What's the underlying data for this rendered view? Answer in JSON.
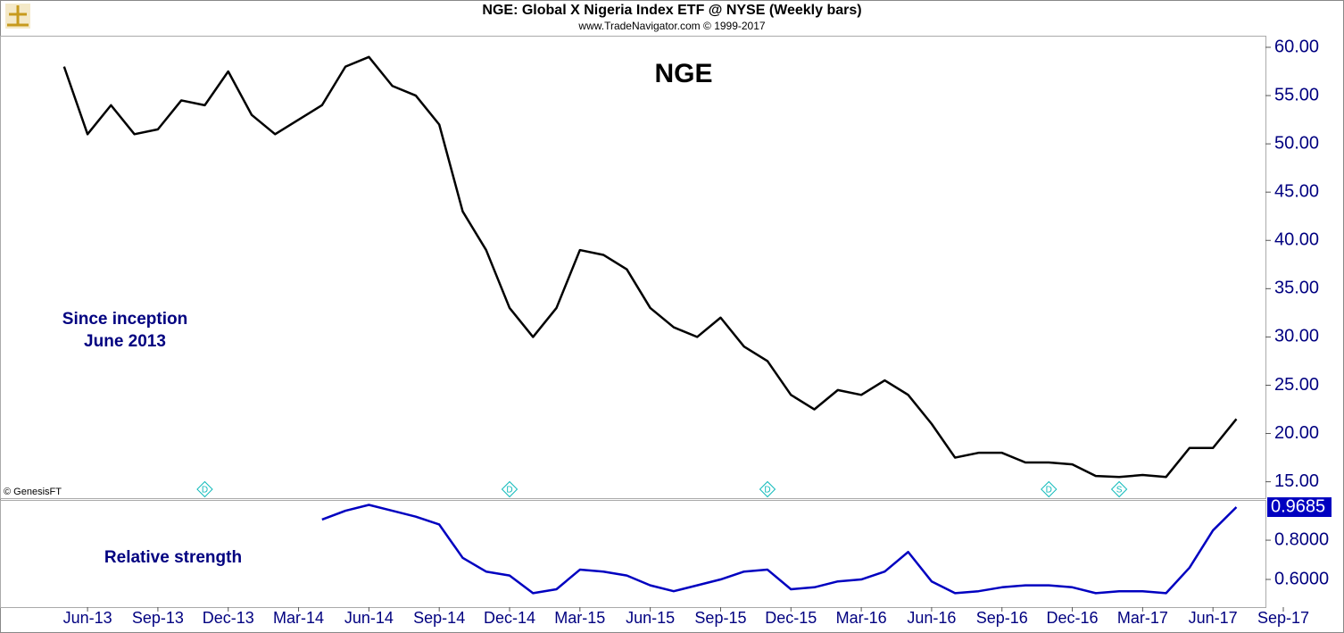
{
  "header": {
    "title": "NGE:  Global X Nigeria Index ETF @ NYSE  (Weekly bars)",
    "subtitle": "www.TradeNavigator.com © 1999-2017",
    "credit": "© GenesisFT"
  },
  "chart_data": [
    {
      "type": "line",
      "title": "NGE",
      "annotations": [
        "Since inception",
        "June 2013"
      ],
      "x": [
        "2013-05",
        "2013-06",
        "2013-07",
        "2013-08",
        "2013-09",
        "2013-10",
        "2013-11",
        "2013-12",
        "2014-01",
        "2014-02",
        "2014-03",
        "2014-04",
        "2014-05",
        "2014-06",
        "2014-07",
        "2014-08",
        "2014-09",
        "2014-10",
        "2014-11",
        "2014-12",
        "2015-01",
        "2015-02",
        "2015-03",
        "2015-04",
        "2015-05",
        "2015-06",
        "2015-07",
        "2015-08",
        "2015-09",
        "2015-10",
        "2015-11",
        "2015-12",
        "2016-01",
        "2016-02",
        "2016-03",
        "2016-04",
        "2016-05",
        "2016-06",
        "2016-07",
        "2016-08",
        "2016-09",
        "2016-10",
        "2016-11",
        "2016-12",
        "2017-01",
        "2017-02",
        "2017-03",
        "2017-04",
        "2017-05",
        "2017-06",
        "2017-07"
      ],
      "series": [
        {
          "name": "NGE",
          "color": "#000000",
          "values": [
            58,
            51,
            54,
            51,
            51.5,
            54.5,
            54,
            57.5,
            53,
            51,
            52.5,
            54,
            58,
            59,
            56,
            55,
            52,
            43,
            39,
            33,
            30,
            33,
            39,
            38.5,
            37,
            33,
            31,
            30,
            32,
            29,
            27.5,
            24,
            22.5,
            24.5,
            24,
            25.5,
            24,
            21,
            17.5,
            18,
            18,
            17,
            17,
            16.8,
            15.6,
            15.5,
            15.7,
            15.5,
            18.5,
            18.5,
            21.5
          ]
        }
      ],
      "markers": [
        {
          "x": "2013-11",
          "label": "D"
        },
        {
          "x": "2014-12",
          "label": "D"
        },
        {
          "x": "2015-11",
          "label": "D"
        },
        {
          "x": "2016-11",
          "label": "D"
        },
        {
          "x": "2017-02",
          "label": "S"
        }
      ],
      "xlim": [
        "2013-02",
        "2017-09"
      ],
      "ylim": [
        13.3,
        61.2
      ],
      "yticks": [
        {
          "value": 15,
          "label": "15.00"
        },
        {
          "value": 20,
          "label": "20.00"
        },
        {
          "value": 25,
          "label": "25.00"
        },
        {
          "value": 30,
          "label": "30.00"
        },
        {
          "value": 35,
          "label": "35.00"
        },
        {
          "value": 40,
          "label": "40.00"
        },
        {
          "value": 45,
          "label": "45.00"
        },
        {
          "value": 50,
          "label": "50.00"
        },
        {
          "value": 55,
          "label": "55.00"
        },
        {
          "value": 60,
          "label": "60.00"
        }
      ],
      "grid": false
    },
    {
      "type": "line",
      "x": [
        "2013-05",
        "2013-06",
        "2013-07",
        "2013-08",
        "2013-09",
        "2013-10",
        "2013-11",
        "2013-12",
        "2014-01",
        "2014-02",
        "2014-03",
        "2014-04",
        "2014-05",
        "2014-06",
        "2014-07",
        "2014-08",
        "2014-09",
        "2014-10",
        "2014-11",
        "2014-12",
        "2015-01",
        "2015-02",
        "2015-03",
        "2015-04",
        "2015-05",
        "2015-06",
        "2015-07",
        "2015-08",
        "2015-09",
        "2015-10",
        "2015-11",
        "2015-12",
        "2016-01",
        "2016-02",
        "2016-03",
        "2016-04",
        "2016-05",
        "2016-06",
        "2016-07",
        "2016-08",
        "2016-09",
        "2016-10",
        "2016-11",
        "2016-12",
        "2017-01",
        "2017-02",
        "2017-03",
        "2017-04",
        "2017-05",
        "2017-06",
        "2017-07"
      ],
      "series": [
        {
          "name": "Relative strength",
          "color": "#0000c0",
          "values": [
            null,
            null,
            null,
            null,
            null,
            null,
            null,
            null,
            null,
            null,
            null,
            0.905,
            0.95,
            0.98,
            0.95,
            0.92,
            0.88,
            0.71,
            0.64,
            0.62,
            0.53,
            0.55,
            0.65,
            0.64,
            0.62,
            0.57,
            0.54,
            0.57,
            0.6,
            0.64,
            0.65,
            0.55,
            0.56,
            0.59,
            0.6,
            0.64,
            0.74,
            0.59,
            0.53,
            0.54,
            0.56,
            0.57,
            0.57,
            0.56,
            0.53,
            0.54,
            0.54,
            0.53,
            0.66,
            0.85,
            0.9685
          ]
        }
      ],
      "current_value": {
        "value": 0.9685,
        "label": "0.9685"
      },
      "xlim": [
        "2013-02",
        "2017-09"
      ],
      "ylim": [
        0.459,
        1.005
      ],
      "yticks": [
        {
          "value": 0.6,
          "label": "0.6000"
        },
        {
          "value": 0.8,
          "label": "0.8000"
        }
      ],
      "xticks": [
        {
          "value": "2013-06",
          "label": "Jun-13"
        },
        {
          "value": "2013-09",
          "label": "Sep-13"
        },
        {
          "value": "2013-12",
          "label": "Dec-13"
        },
        {
          "value": "2014-03",
          "label": "Mar-14"
        },
        {
          "value": "2014-06",
          "label": "Jun-14"
        },
        {
          "value": "2014-09",
          "label": "Sep-14"
        },
        {
          "value": "2014-12",
          "label": "Dec-14"
        },
        {
          "value": "2015-03",
          "label": "Mar-15"
        },
        {
          "value": "2015-06",
          "label": "Jun-15"
        },
        {
          "value": "2015-09",
          "label": "Sep-15"
        },
        {
          "value": "2015-12",
          "label": "Dec-15"
        },
        {
          "value": "2016-03",
          "label": "Mar-16"
        },
        {
          "value": "2016-06",
          "label": "Jun-16"
        },
        {
          "value": "2016-09",
          "label": "Sep-16"
        },
        {
          "value": "2016-12",
          "label": "Dec-16"
        },
        {
          "value": "2017-03",
          "label": "Mar-17"
        },
        {
          "value": "2017-06",
          "label": "Jun-17"
        },
        {
          "value": "2017-09",
          "label": "Sep-17"
        }
      ],
      "grid": false
    }
  ]
}
